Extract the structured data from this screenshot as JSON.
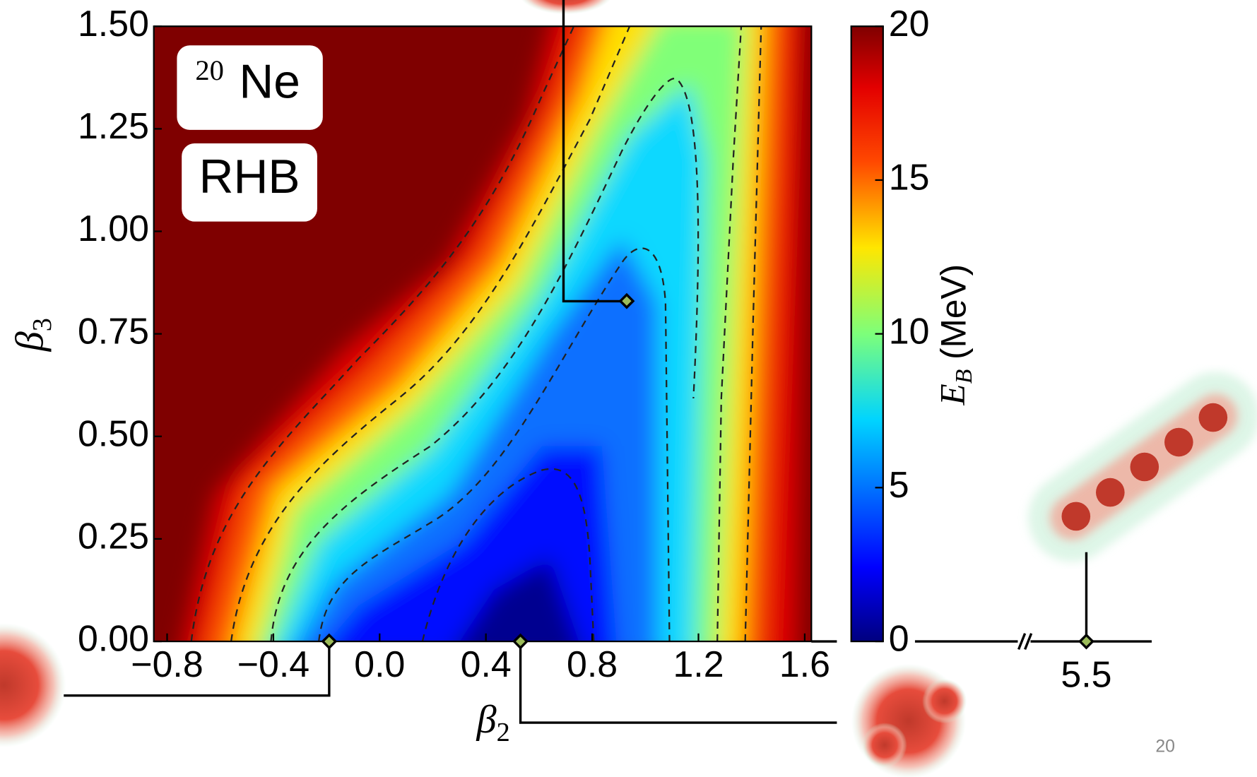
{
  "chart_data": {
    "type": "heatmap",
    "x_label": {
      "symbol": "β",
      "subscript": "2"
    },
    "y_label": {
      "symbol": "β",
      "subscript": "3"
    },
    "xlim": [
      -0.85,
      1.625
    ],
    "ylim": [
      0,
      1.5
    ],
    "xticks": [
      {
        "value": -0.8,
        "label": "−0.8"
      },
      {
        "value": -0.4,
        "label": "−0.4"
      },
      {
        "value": 0,
        "label": "0.0"
      },
      0.4,
      0.8,
      1.2,
      1.6
    ],
    "yticks": [
      {
        "value": 0,
        "label": "0.00"
      },
      {
        "value": 0.25,
        "label": "0.25"
      },
      {
        "value": 0.5,
        "label": "0.50"
      },
      {
        "value": 0.75,
        "label": "0.75"
      },
      {
        "value": 1,
        "label": "1.00"
      },
      {
        "value": 1.25,
        "label": "1.25"
      },
      {
        "value": 1.5,
        "label": "1.50"
      }
    ],
    "colorbar": {
      "label": {
        "symbol": "E",
        "subscript": "B",
        "unit": "(MeV)"
      },
      "lim": [
        0,
        20
      ],
      "ticks": [
        0,
        5,
        10,
        15,
        20
      ]
    },
    "annotations": {
      "nucleus_mass": "20",
      "nucleus_symbol": "Ne",
      "model": "RHB"
    },
    "points": {
      "color": "#9bbb59",
      "x": [
        -0.19,
        0.53,
        0.93
      ],
      "y": [
        0,
        0,
        0.83
      ]
    },
    "extended_axis": {
      "ticks": [
        5.5
      ],
      "points_x": [
        5.5
      ],
      "points_y": [
        0
      ]
    }
  },
  "page_number": "20"
}
